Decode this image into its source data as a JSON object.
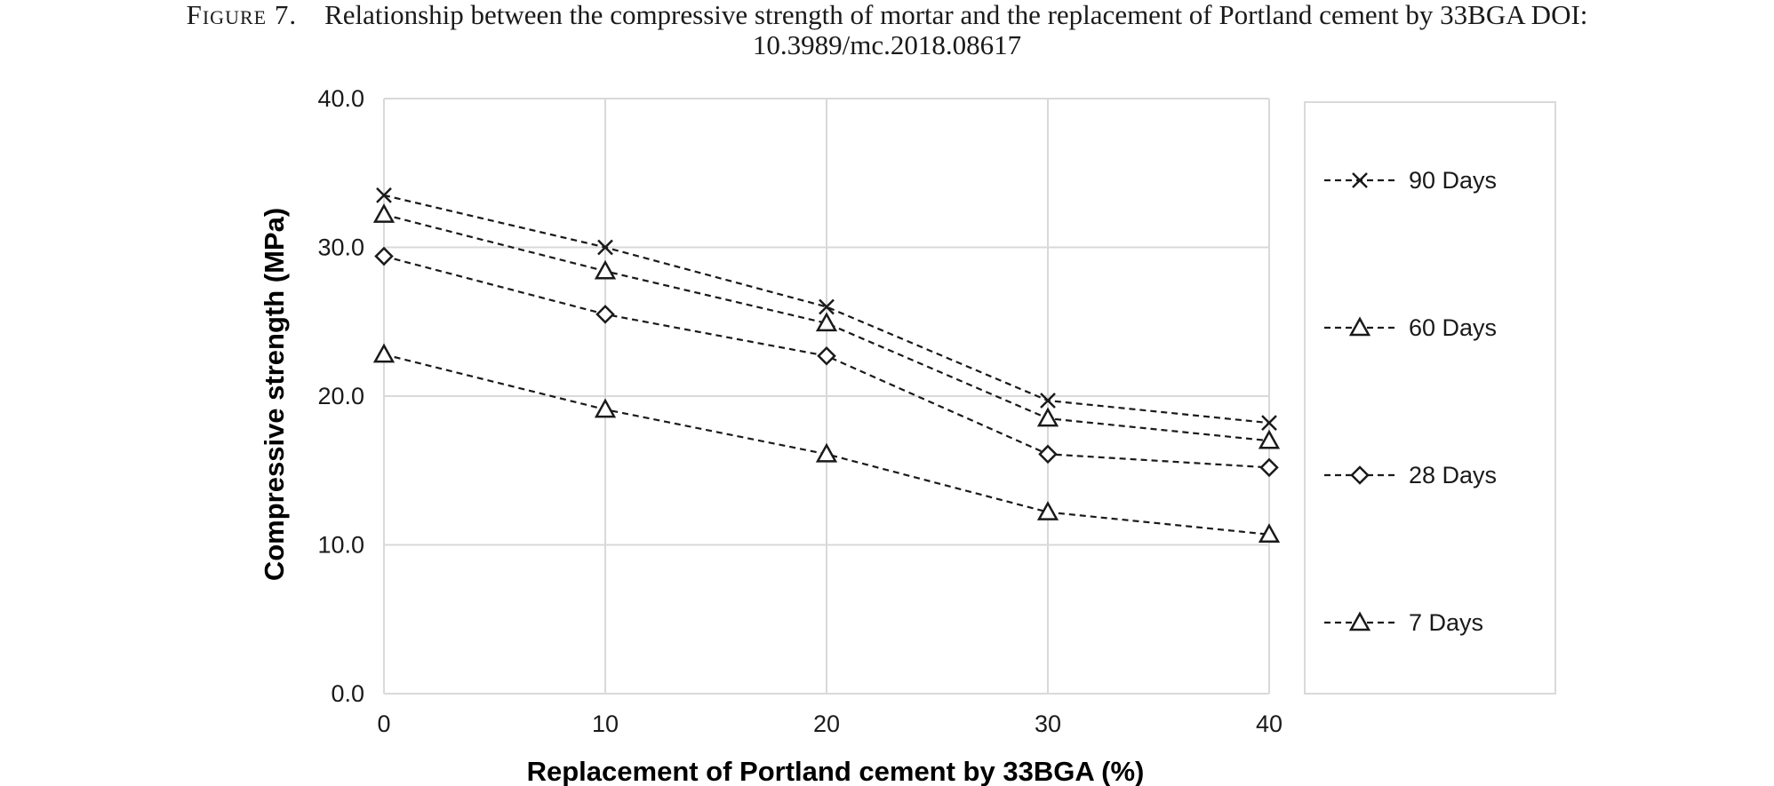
{
  "caption": {
    "label": "Figure 7.",
    "line1": "Relationship between the compressive strength of mortar and the replacement of Portland cement by 33BGA DOI:",
    "line2": "10.3989/mc.2018.08617"
  },
  "chart_data": {
    "type": "line",
    "xlabel": "Replacement of Portland cement by 33BGA (%)",
    "ylabel": "Compressive strength (MPa)",
    "x": [
      0,
      10,
      20,
      30,
      40
    ],
    "xticks": [
      "0",
      "10",
      "20",
      "30",
      "40"
    ],
    "yticks": [
      "0.0",
      "10.0",
      "20.0",
      "30.0",
      "40.0"
    ],
    "xlim": [
      0,
      40
    ],
    "ylim": [
      0,
      40
    ],
    "grid": true,
    "legend_position": "right",
    "line_style": "dashed",
    "line_color": "#1a1a1a",
    "series": [
      {
        "name": "90 Days",
        "marker": "x",
        "values": [
          33.5,
          30.0,
          26.0,
          19.7,
          18.2
        ]
      },
      {
        "name": "60 Days",
        "marker": "triangle",
        "values": [
          32.2,
          28.4,
          24.9,
          18.5,
          17.0
        ]
      },
      {
        "name": "28 Days",
        "marker": "diamond",
        "values": [
          29.4,
          25.5,
          22.7,
          16.1,
          15.2
        ]
      },
      {
        "name": "7 Days",
        "marker": "triangle",
        "values": [
          22.8,
          19.1,
          16.1,
          12.2,
          10.7
        ]
      }
    ]
  }
}
